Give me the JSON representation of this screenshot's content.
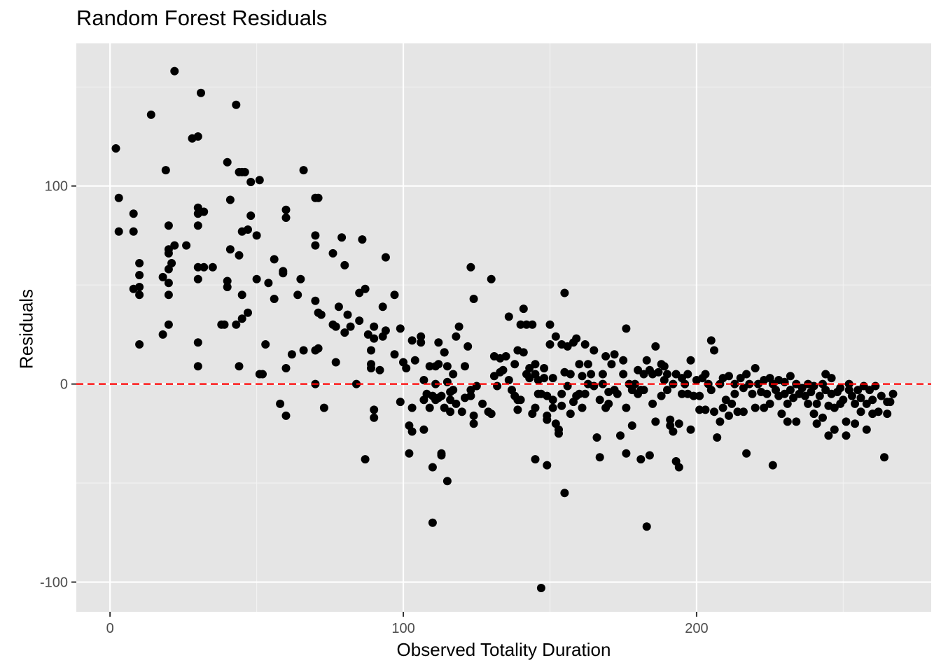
{
  "chart_data": {
    "type": "scatter",
    "title": "Random Forest Residuals",
    "xlabel": "Observed Totality Duration",
    "ylabel": "Residuals",
    "xlim": [
      -11.5,
      280
    ],
    "ylim": [
      -115,
      172
    ],
    "x_ticks": [
      0,
      100,
      200
    ],
    "x_tick_labels": [
      "0",
      "100",
      "200"
    ],
    "y_ticks": [
      -100,
      0,
      100
    ],
    "y_tick_labels": [
      "-100",
      "0",
      "100"
    ],
    "grid": true,
    "reference_line": {
      "y": 0,
      "color": "#ff0000",
      "style": "dashed"
    },
    "point_color": "#000000",
    "background": "#e5e5e5",
    "points": [
      [
        2,
        119
      ],
      [
        3,
        94
      ],
      [
        3,
        77
      ],
      [
        8,
        86
      ],
      [
        8,
        77
      ],
      [
        8,
        48
      ],
      [
        10,
        61
      ],
      [
        10,
        55
      ],
      [
        10,
        49
      ],
      [
        10,
        45
      ],
      [
        10,
        20
      ],
      [
        14,
        136
      ],
      [
        18,
        54
      ],
      [
        18,
        25
      ],
      [
        19,
        108
      ],
      [
        20,
        80
      ],
      [
        20,
        68
      ],
      [
        20,
        66
      ],
      [
        20,
        58
      ],
      [
        20,
        51
      ],
      [
        20,
        45
      ],
      [
        20,
        30
      ],
      [
        21,
        61
      ],
      [
        22,
        158
      ],
      [
        22,
        70
      ],
      [
        26,
        70
      ],
      [
        28,
        124
      ],
      [
        30,
        125
      ],
      [
        30,
        89
      ],
      [
        30,
        86
      ],
      [
        30,
        80
      ],
      [
        30,
        59
      ],
      [
        30,
        53
      ],
      [
        30,
        21
      ],
      [
        30,
        9
      ],
      [
        31,
        147
      ],
      [
        32,
        87
      ],
      [
        32,
        59
      ],
      [
        35,
        59
      ],
      [
        38,
        30
      ],
      [
        39,
        30
      ],
      [
        40,
        112
      ],
      [
        40,
        52
      ],
      [
        40,
        49
      ],
      [
        41,
        68
      ],
      [
        41,
        93
      ],
      [
        43,
        141
      ],
      [
        43,
        30
      ],
      [
        44,
        9
      ],
      [
        44,
        65
      ],
      [
        44,
        107
      ],
      [
        45,
        107
      ],
      [
        45,
        77
      ],
      [
        45,
        45
      ],
      [
        45,
        33
      ],
      [
        46,
        107
      ],
      [
        47,
        78
      ],
      [
        47,
        36
      ],
      [
        48,
        85
      ],
      [
        48,
        102
      ],
      [
        50,
        75
      ],
      [
        50,
        53
      ],
      [
        51,
        5
      ],
      [
        51,
        103
      ],
      [
        52,
        5
      ],
      [
        53,
        20
      ],
      [
        54,
        51
      ],
      [
        56,
        63
      ],
      [
        56,
        43
      ],
      [
        58,
        -10
      ],
      [
        59,
        57
      ],
      [
        59,
        56
      ],
      [
        60,
        88
      ],
      [
        60,
        84
      ],
      [
        60,
        8
      ],
      [
        60,
        -16
      ],
      [
        62,
        15
      ],
      [
        64,
        45
      ],
      [
        65,
        53
      ],
      [
        66,
        17
      ],
      [
        66,
        108
      ],
      [
        70,
        94
      ],
      [
        70,
        75
      ],
      [
        70,
        70
      ],
      [
        70,
        42
      ],
      [
        70,
        17
      ],
      [
        70,
        0
      ],
      [
        71,
        94
      ],
      [
        71,
        36
      ],
      [
        71,
        18
      ],
      [
        72,
        35
      ],
      [
        73,
        -12
      ],
      [
        76,
        66
      ],
      [
        76,
        30
      ],
      [
        77,
        29
      ],
      [
        77,
        11
      ],
      [
        78,
        39
      ],
      [
        79,
        74
      ],
      [
        80,
        60
      ],
      [
        80,
        26
      ],
      [
        81,
        35
      ],
      [
        82,
        29
      ],
      [
        84,
        0
      ],
      [
        85,
        46
      ],
      [
        85,
        32
      ],
      [
        86,
        73
      ],
      [
        87,
        48
      ],
      [
        87,
        -38
      ],
      [
        88,
        25
      ],
      [
        89,
        17
      ],
      [
        89,
        10
      ],
      [
        89,
        8
      ],
      [
        90,
        -13
      ],
      [
        90,
        -17
      ],
      [
        90,
        29
      ],
      [
        90,
        23
      ],
      [
        92,
        7
      ],
      [
        93,
        39
      ],
      [
        93,
        24
      ],
      [
        94,
        27
      ],
      [
        94,
        64
      ],
      [
        97,
        45
      ],
      [
        97,
        15
      ],
      [
        99,
        28
      ],
      [
        99,
        -9
      ],
      [
        100,
        11
      ],
      [
        101,
        8
      ],
      [
        102,
        -21
      ],
      [
        102,
        -35
      ],
      [
        103,
        22
      ],
      [
        103,
        -12
      ],
      [
        103,
        -24
      ],
      [
        104,
        12
      ],
      [
        106,
        21
      ],
      [
        106,
        24
      ],
      [
        107,
        -23
      ],
      [
        107,
        -8
      ],
      [
        107,
        2
      ],
      [
        108,
        -5
      ],
      [
        109,
        9
      ],
      [
        109,
        -12
      ],
      [
        110,
        -6
      ],
      [
        110,
        -42
      ],
      [
        110,
        -70
      ],
      [
        111,
        0
      ],
      [
        111,
        -8
      ],
      [
        111,
        9
      ],
      [
        112,
        10
      ],
      [
        112,
        21
      ],
      [
        112,
        -7
      ],
      [
        113,
        -6
      ],
      [
        113,
        -35
      ],
      [
        113,
        -36
      ],
      [
        114,
        16
      ],
      [
        114,
        16
      ],
      [
        114,
        -12
      ],
      [
        115,
        -49
      ],
      [
        115,
        9
      ],
      [
        115,
        1
      ],
      [
        116,
        -8
      ],
      [
        116,
        -14
      ],
      [
        116,
        -4
      ],
      [
        117,
        5
      ],
      [
        117,
        -3
      ],
      [
        118,
        24
      ],
      [
        118,
        -10
      ],
      [
        119,
        29
      ],
      [
        120,
        -14
      ],
      [
        121,
        -7
      ],
      [
        121,
        9
      ],
      [
        122,
        19
      ],
      [
        123,
        59
      ],
      [
        123,
        -3
      ],
      [
        123,
        -6
      ],
      [
        124,
        43
      ],
      [
        124,
        -20
      ],
      [
        124,
        -16
      ],
      [
        125,
        -1
      ],
      [
        127,
        -10
      ],
      [
        129,
        -14
      ],
      [
        130,
        -15
      ],
      [
        130,
        53
      ],
      [
        131,
        14
      ],
      [
        131,
        4
      ],
      [
        132,
        -1
      ],
      [
        133,
        13
      ],
      [
        133,
        6
      ],
      [
        134,
        7
      ],
      [
        135,
        14
      ],
      [
        136,
        34
      ],
      [
        136,
        2
      ],
      [
        137,
        -3
      ],
      [
        138,
        10
      ],
      [
        138,
        -6
      ],
      [
        139,
        -13
      ],
      [
        139,
        17
      ],
      [
        139,
        -8
      ],
      [
        140,
        30
      ],
      [
        140,
        -8
      ],
      [
        141,
        38
      ],
      [
        141,
        16
      ],
      [
        142,
        30
      ],
      [
        142,
        5
      ],
      [
        143,
        8
      ],
      [
        143,
        3
      ],
      [
        144,
        -15
      ],
      [
        144,
        30
      ],
      [
        145,
        10
      ],
      [
        145,
        5
      ],
      [
        145,
        -12
      ],
      [
        145,
        -38
      ],
      [
        146,
        2
      ],
      [
        146,
        -5
      ],
      [
        147,
        -103
      ],
      [
        147,
        -5
      ],
      [
        148,
        8
      ],
      [
        148,
        3
      ],
      [
        149,
        -6
      ],
      [
        149,
        -16
      ],
      [
        149,
        -18
      ],
      [
        149,
        -41
      ],
      [
        150,
        30
      ],
      [
        150,
        20
      ],
      [
        151,
        3
      ],
      [
        151,
        -8
      ],
      [
        151,
        -12
      ],
      [
        152,
        24
      ],
      [
        152,
        -20
      ],
      [
        153,
        -25
      ],
      [
        153,
        -23
      ],
      [
        154,
        20
      ],
      [
        154,
        -11
      ],
      [
        154,
        -5
      ],
      [
        155,
        46
      ],
      [
        155,
        -55
      ],
      [
        155,
        6
      ],
      [
        156,
        19
      ],
      [
        156,
        -1
      ],
      [
        157,
        5
      ],
      [
        157,
        -15
      ],
      [
        158,
        -9
      ],
      [
        158,
        21
      ],
      [
        159,
        23
      ],
      [
        159,
        -6
      ],
      [
        160,
        -5
      ],
      [
        160,
        10
      ],
      [
        161,
        4
      ],
      [
        161,
        -12
      ],
      [
        162,
        20
      ],
      [
        162,
        -5
      ],
      [
        163,
        0
      ],
      [
        163,
        10
      ],
      [
        164,
        5
      ],
      [
        165,
        -1
      ],
      [
        165,
        17
      ],
      [
        166,
        -27
      ],
      [
        167,
        -8
      ],
      [
        167,
        -37
      ],
      [
        168,
        0
      ],
      [
        168,
        5
      ],
      [
        169,
        -12
      ],
      [
        169,
        14
      ],
      [
        170,
        -10
      ],
      [
        170,
        -4
      ],
      [
        171,
        10
      ],
      [
        172,
        15
      ],
      [
        172,
        -3
      ],
      [
        173,
        -5
      ],
      [
        174,
        -26
      ],
      [
        175,
        5
      ],
      [
        175,
        12
      ],
      [
        176,
        -35
      ],
      [
        176,
        -12
      ],
      [
        176,
        28
      ],
      [
        177,
        0
      ],
      [
        178,
        -3
      ],
      [
        178,
        -21
      ],
      [
        179,
        0
      ],
      [
        180,
        7
      ],
      [
        180,
        -5
      ],
      [
        181,
        -3
      ],
      [
        181,
        -38
      ],
      [
        182,
        -3
      ],
      [
        182,
        5
      ],
      [
        183,
        12
      ],
      [
        183,
        -72
      ],
      [
        184,
        7
      ],
      [
        184,
        -36
      ],
      [
        185,
        5
      ],
      [
        185,
        -10
      ],
      [
        186,
        -19
      ],
      [
        186,
        19
      ],
      [
        187,
        6
      ],
      [
        188,
        -6
      ],
      [
        188,
        10
      ],
      [
        189,
        2
      ],
      [
        189,
        9
      ],
      [
        190,
        -3
      ],
      [
        190,
        5
      ],
      [
        191,
        -21
      ],
      [
        191,
        -18
      ],
      [
        192,
        -24
      ],
      [
        192,
        0
      ],
      [
        193,
        5
      ],
      [
        193,
        -39
      ],
      [
        194,
        -42
      ],
      [
        194,
        -20
      ],
      [
        195,
        3
      ],
      [
        195,
        -5
      ],
      [
        196,
        0
      ],
      [
        197,
        -5
      ],
      [
        197,
        5
      ],
      [
        198,
        -23
      ],
      [
        198,
        12
      ],
      [
        199,
        -6
      ],
      [
        200,
        2
      ],
      [
        201,
        -13
      ],
      [
        201,
        -6
      ],
      [
        202,
        3
      ],
      [
        203,
        -13
      ],
      [
        203,
        5
      ],
      [
        204,
        0
      ],
      [
        205,
        22
      ],
      [
        205,
        -3
      ],
      [
        206,
        17
      ],
      [
        206,
        -14
      ],
      [
        207,
        -27
      ],
      [
        208,
        -19
      ],
      [
        208,
        0
      ],
      [
        209,
        -12
      ],
      [
        209,
        3
      ],
      [
        210,
        -8
      ],
      [
        211,
        4
      ],
      [
        211,
        -16
      ],
      [
        212,
        -10
      ],
      [
        213,
        0
      ],
      [
        213,
        -5
      ],
      [
        214,
        -14
      ],
      [
        215,
        3
      ],
      [
        216,
        -2
      ],
      [
        216,
        -14
      ],
      [
        217,
        -35
      ],
      [
        217,
        5
      ],
      [
        218,
        0
      ],
      [
        219,
        -5
      ],
      [
        220,
        8
      ],
      [
        220,
        -12
      ],
      [
        221,
        0
      ],
      [
        222,
        -4
      ],
      [
        223,
        2
      ],
      [
        223,
        -12
      ],
      [
        224,
        -5
      ],
      [
        225,
        3
      ],
      [
        225,
        -10
      ],
      [
        226,
        -41
      ],
      [
        226,
        0
      ],
      [
        227,
        -3
      ],
      [
        228,
        -6
      ],
      [
        228,
        2
      ],
      [
        229,
        -15
      ],
      [
        230,
        -5
      ],
      [
        230,
        1
      ],
      [
        231,
        -19
      ],
      [
        231,
        -10
      ],
      [
        232,
        4
      ],
      [
        232,
        -3
      ],
      [
        233,
        -7
      ],
      [
        234,
        -19
      ],
      [
        234,
        0
      ],
      [
        235,
        -5
      ],
      [
        236,
        -2
      ],
      [
        237,
        -6
      ],
      [
        238,
        0
      ],
      [
        238,
        -10
      ],
      [
        239,
        -4
      ],
      [
        240,
        -1
      ],
      [
        240,
        -15
      ],
      [
        241,
        -20
      ],
      [
        241,
        -10
      ],
      [
        242,
        -6
      ],
      [
        243,
        0
      ],
      [
        243,
        -17
      ],
      [
        244,
        -3
      ],
      [
        244,
        5
      ],
      [
        245,
        -11
      ],
      [
        245,
        -26
      ],
      [
        246,
        -5
      ],
      [
        246,
        3
      ],
      [
        247,
        -23
      ],
      [
        247,
        -12
      ],
      [
        248,
        -4
      ],
      [
        249,
        -2
      ],
      [
        249,
        -10
      ],
      [
        250,
        -8
      ],
      [
        251,
        -19
      ],
      [
        251,
        -26
      ],
      [
        252,
        -3
      ],
      [
        252,
        0
      ],
      [
        253,
        -6
      ],
      [
        254,
        -10
      ],
      [
        254,
        -20
      ],
      [
        255,
        -3
      ],
      [
        256,
        -14
      ],
      [
        256,
        -7
      ],
      [
        257,
        -1
      ],
      [
        258,
        -23
      ],
      [
        258,
        -10
      ],
      [
        259,
        -3
      ],
      [
        260,
        -15
      ],
      [
        260,
        -8
      ],
      [
        261,
        -1
      ],
      [
        262,
        -14
      ],
      [
        263,
        -6
      ],
      [
        264,
        -37
      ],
      [
        265,
        -9
      ],
      [
        265,
        -15
      ],
      [
        266,
        -9
      ],
      [
        267,
        -5
      ]
    ]
  }
}
